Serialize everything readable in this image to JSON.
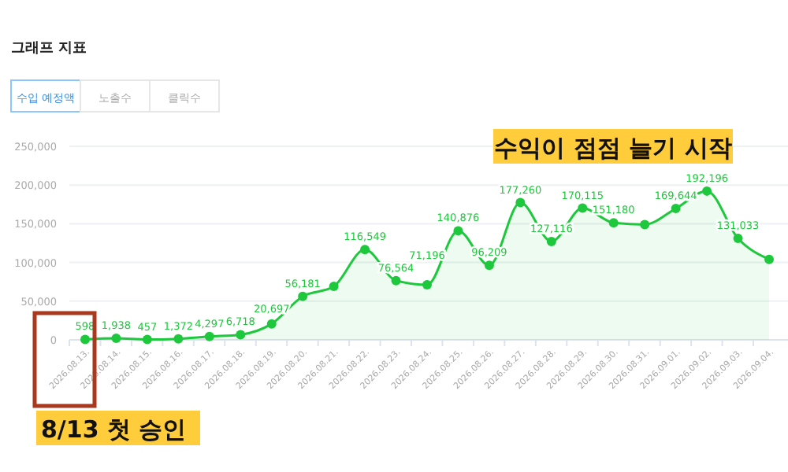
{
  "chart_data": {
    "type": "area",
    "title": "그래프 지표",
    "annotations": [
      "수입 예정액",
      "노출수",
      "클릭수",
      "수익이 점점 늘기 시작",
      "8/13 첫 승인"
    ],
    "categories": [
      "2026.08.13.",
      "2026.08.14.",
      "2026.08.15.",
      "2026.08.16.",
      "2026.08.17.",
      "2026.08.18.",
      "2026.08.19.",
      "2026.08.20.",
      "2026.08.21.",
      "2026.08.22.",
      "2026.08.23.",
      "2026.08.24.",
      "2026.08.25.",
      "2026.08.26.",
      "2026.08.27.",
      "2026.08.28.",
      "2026.08.29.",
      "2026.08.30.",
      "2026.08.31.",
      "2026.09.01.",
      "2026.09.02.",
      "2026.09.03.",
      "2026.09.04."
    ],
    "series": [
      {
        "color": "#1ec83c",
        "values": [
          598,
          1938,
          457,
          1372,
          4297,
          6718,
          20697,
          56181,
          69000,
          116549,
          76564,
          71196,
          140876,
          96209,
          177260,
          127116,
          170115,
          151180,
          149000,
          169644,
          192196,
          131033,
          104000
        ],
        "value_labels": [
          "598",
          "1,938",
          "457",
          "1,372",
          "4,297",
          "6,718",
          "20,697",
          "56,181",
          null,
          "116,549",
          "76,564",
          "71,196",
          "140,876",
          "96,209",
          "177,260",
          "127,116",
          "170,115",
          "151,180",
          null,
          "169,644",
          "192,196",
          "131,033",
          null
        ]
      }
    ],
    "ylim": [
      0,
      250000
    ],
    "yticks": [
      {
        "value": 0,
        "label": "0"
      },
      {
        "value": 50000,
        "label": "50,000"
      },
      {
        "value": 100000,
        "label": "100,000"
      },
      {
        "value": 150000,
        "label": "150,000"
      },
      {
        "value": 200000,
        "label": "200,000"
      },
      {
        "value": 250000,
        "label": "250,000"
      }
    ],
    "grid": "y",
    "marker": "circle",
    "legend": false
  }
}
